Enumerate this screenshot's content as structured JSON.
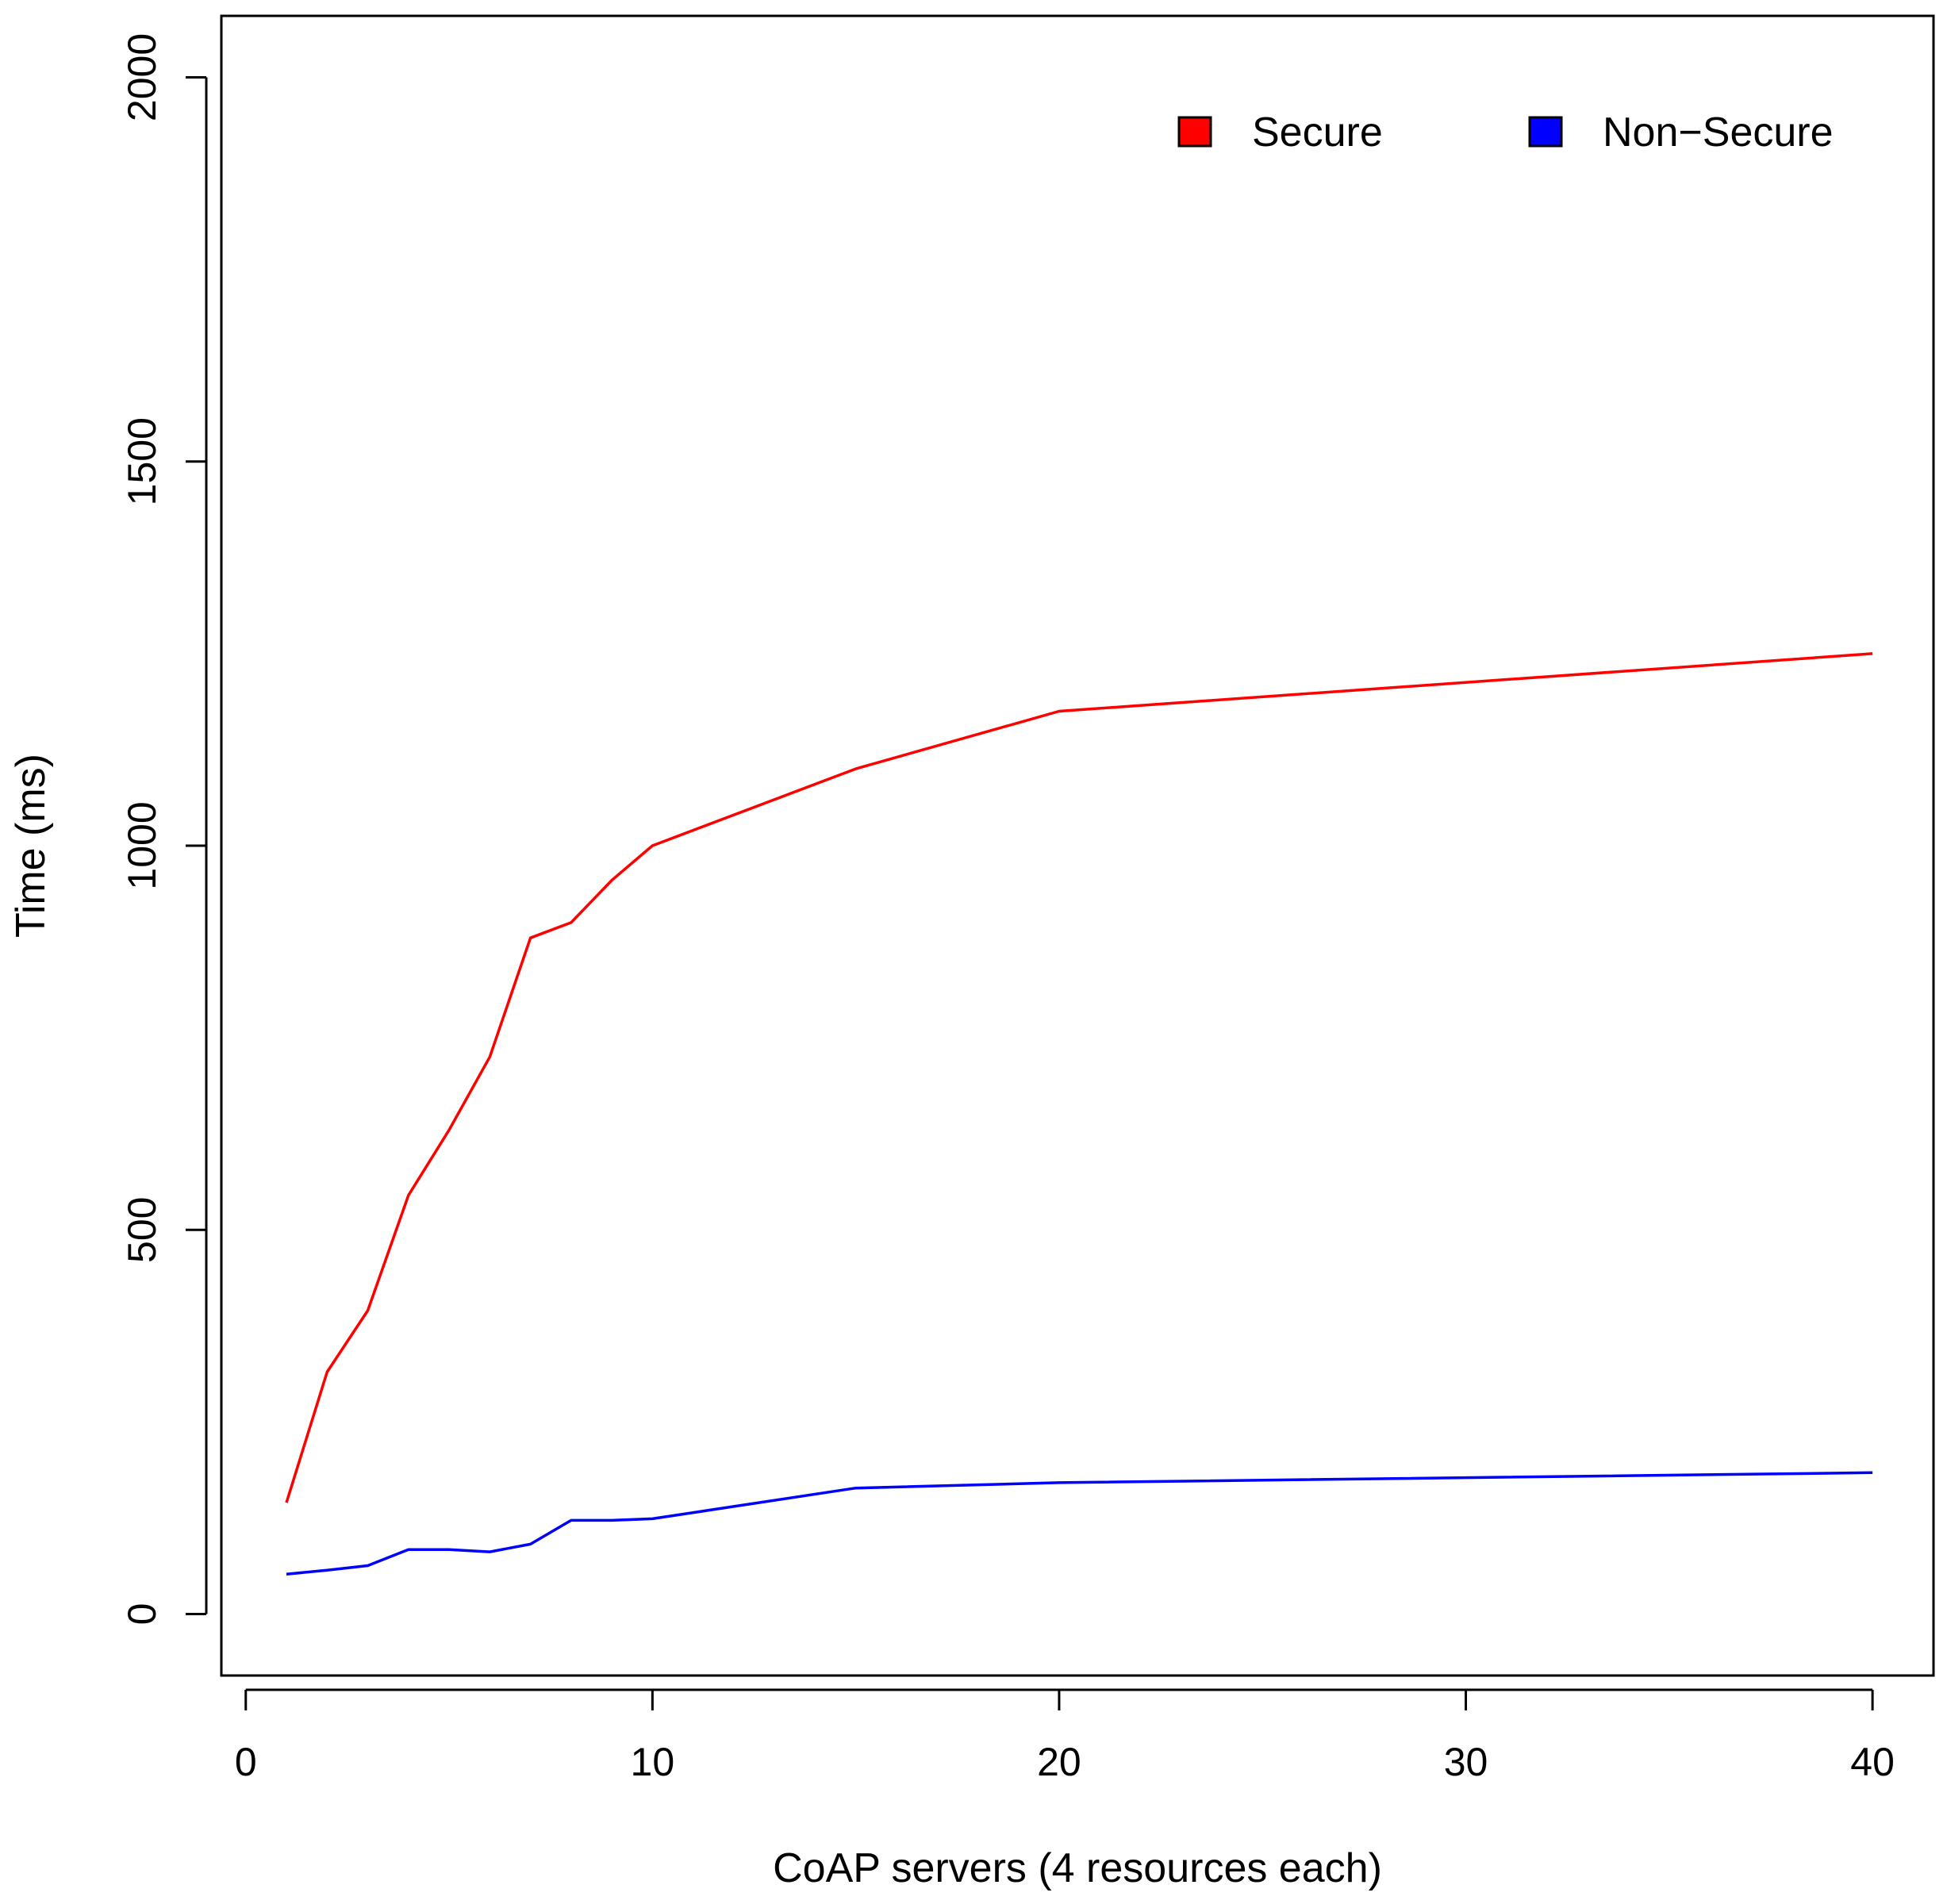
{
  "chart_data": {
    "type": "line",
    "title": "",
    "xlabel": "CoAP servers (4 resources each)",
    "ylabel": "Time (ms)",
    "xlim": [
      -0.6,
      41.5
    ],
    "ylim": [
      -80,
      2080
    ],
    "xticks": [
      0,
      10,
      20,
      30,
      40
    ],
    "yticks": [
      0,
      500,
      1000,
      1500,
      2000
    ],
    "xtick_labels": [
      "0",
      "10",
      "20",
      "30",
      "40"
    ],
    "ytick_labels": [
      "0",
      "500",
      "1000",
      "1500",
      "2000"
    ],
    "grid": false,
    "legend_position": "top-right",
    "series": [
      {
        "name": "Secure",
        "color": "#ff0000",
        "x": [
          1,
          2,
          3,
          4,
          5,
          6,
          7,
          8,
          9,
          10,
          15,
          20,
          40
        ],
        "y": [
          145,
          315,
          395,
          545,
          630,
          725,
          880,
          900,
          955,
          1000,
          1100,
          1175,
          1250
        ]
      },
      {
        "name": "Non-Secure",
        "color": "#0000ff",
        "x": [
          1,
          2,
          3,
          4,
          5,
          6,
          7,
          8,
          9,
          10,
          15,
          20,
          40
        ],
        "y": [
          52,
          57,
          63,
          84,
          84,
          81,
          91,
          122,
          122,
          124,
          164,
          171,
          184
        ]
      }
    ],
    "legend": [
      {
        "label": "Secure",
        "color": "#ff0000"
      },
      {
        "label": "Non−Secure",
        "color": "#0000ff"
      }
    ]
  }
}
